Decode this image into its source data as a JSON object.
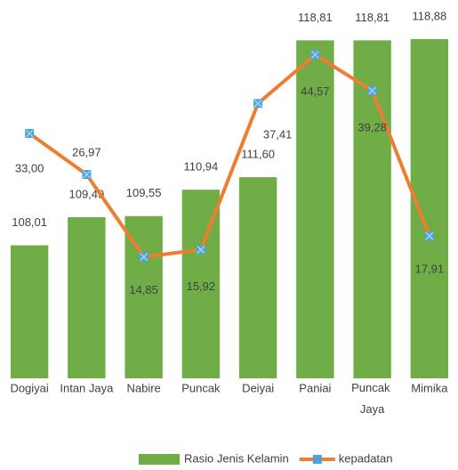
{
  "chart_data": {
    "type": "bar-line",
    "categories": [
      "Dogiyai",
      "Intan Jaya",
      "Nabire",
      "Puncak",
      "Deiyai",
      "Paniai",
      "Puncak Jaya",
      "Mimika"
    ],
    "series": [
      {
        "name": "Rasio Jenis Kelamin",
        "type": "bar",
        "color": "#70ad47",
        "values": [
          108.01,
          109.49,
          109.55,
          110.94,
          111.6,
          118.81,
          118.81,
          118.88
        ],
        "value_labels": [
          "108,01",
          "109,49",
          "109,55",
          "110,94",
          "111,60",
          "118,81",
          "118,81",
          "118,88"
        ]
      },
      {
        "name": "kepadatan",
        "type": "line",
        "axis": "y2",
        "color": "#ed7d31",
        "marker_color": "#4aa3d9",
        "values": [
          33.0,
          26.97,
          14.85,
          15.92,
          37.41,
          44.57,
          39.28,
          17.91
        ],
        "value_labels": [
          "33,00",
          "26,97",
          "14,85",
          "15,92",
          "37,41",
          "44,57",
          "39,28",
          "17,91"
        ]
      }
    ],
    "ylim": [
      101,
      120
    ],
    "y2lim": [
      -3,
      50
    ],
    "legend": "bottom"
  }
}
